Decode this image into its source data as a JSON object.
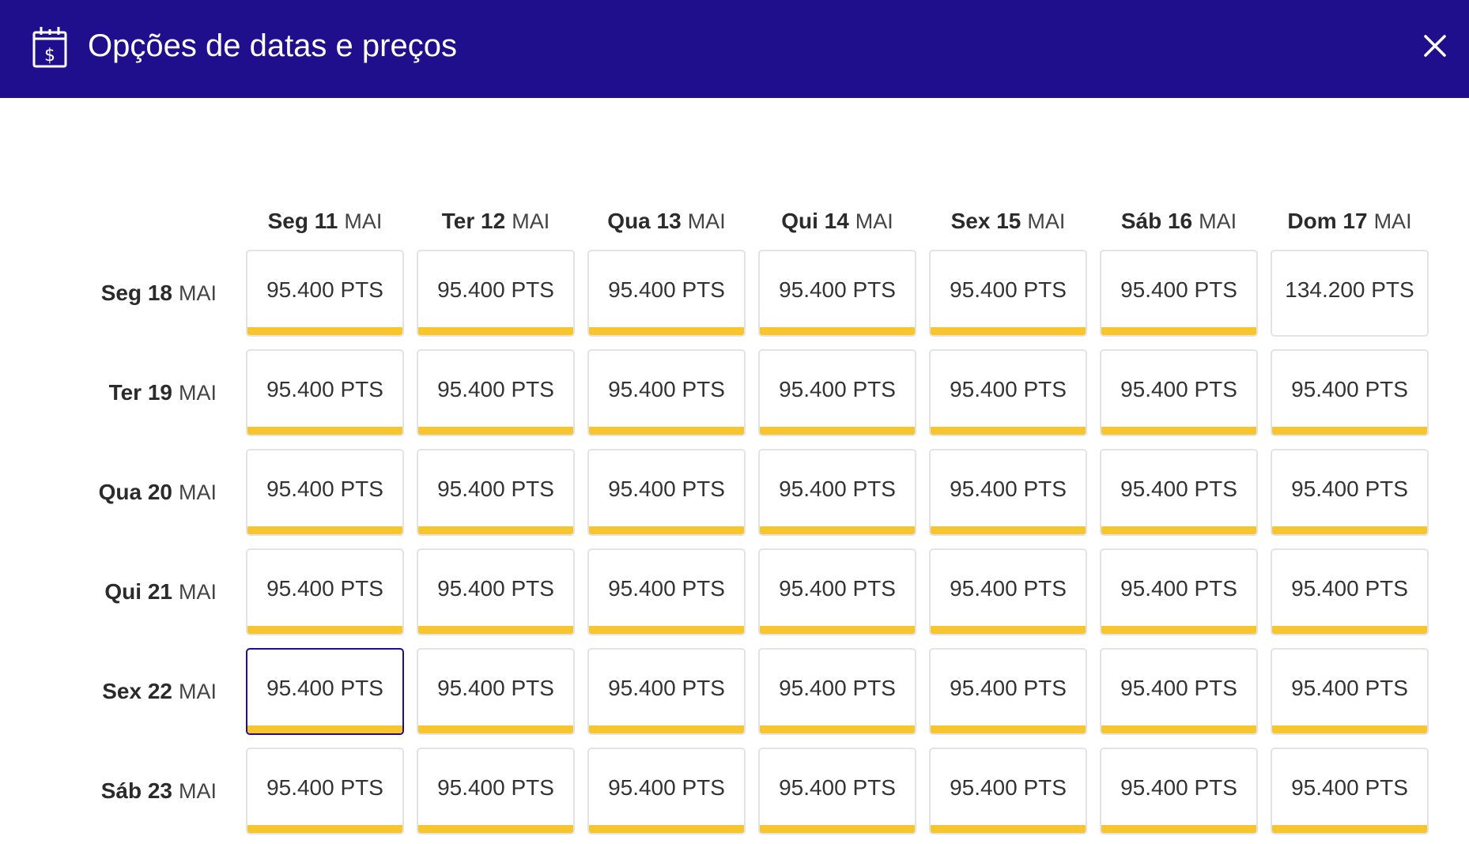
{
  "header": {
    "title": "Opções de datas e preços",
    "icon": "calendar-dollar-icon",
    "close_icon": "close-icon",
    "background_color": "#1f0f8c"
  },
  "columns": [
    {
      "day": "Seg 11",
      "month": "MAI"
    },
    {
      "day": "Ter 12",
      "month": "MAI"
    },
    {
      "day": "Qua 13",
      "month": "MAI"
    },
    {
      "day": "Qui 14",
      "month": "MAI"
    },
    {
      "day": "Sex 15",
      "month": "MAI"
    },
    {
      "day": "Sáb 16",
      "month": "MAI"
    },
    {
      "day": "Dom 17",
      "month": "MAI"
    }
  ],
  "rows": [
    {
      "day": "Seg 18",
      "month": "MAI",
      "cells": [
        {
          "price": "95.400 PTS",
          "highlighted": true
        },
        {
          "price": "95.400 PTS",
          "highlighted": true
        },
        {
          "price": "95.400 PTS",
          "highlighted": true
        },
        {
          "price": "95.400 PTS",
          "highlighted": true
        },
        {
          "price": "95.400 PTS",
          "highlighted": true
        },
        {
          "price": "95.400 PTS",
          "highlighted": true
        },
        {
          "price": "134.200 PTS",
          "highlighted": false
        }
      ]
    },
    {
      "day": "Ter 19",
      "month": "MAI",
      "cells": [
        {
          "price": "95.400 PTS",
          "highlighted": true
        },
        {
          "price": "95.400 PTS",
          "highlighted": true
        },
        {
          "price": "95.400 PTS",
          "highlighted": true
        },
        {
          "price": "95.400 PTS",
          "highlighted": true
        },
        {
          "price": "95.400 PTS",
          "highlighted": true
        },
        {
          "price": "95.400 PTS",
          "highlighted": true
        },
        {
          "price": "95.400 PTS",
          "highlighted": true
        }
      ]
    },
    {
      "day": "Qua 20",
      "month": "MAI",
      "cells": [
        {
          "price": "95.400 PTS",
          "highlighted": true
        },
        {
          "price": "95.400 PTS",
          "highlighted": true
        },
        {
          "price": "95.400 PTS",
          "highlighted": true
        },
        {
          "price": "95.400 PTS",
          "highlighted": true
        },
        {
          "price": "95.400 PTS",
          "highlighted": true
        },
        {
          "price": "95.400 PTS",
          "highlighted": true
        },
        {
          "price": "95.400 PTS",
          "highlighted": true
        }
      ]
    },
    {
      "day": "Qui 21",
      "month": "MAI",
      "cells": [
        {
          "price": "95.400 PTS",
          "highlighted": true
        },
        {
          "price": "95.400 PTS",
          "highlighted": true
        },
        {
          "price": "95.400 PTS",
          "highlighted": true
        },
        {
          "price": "95.400 PTS",
          "highlighted": true
        },
        {
          "price": "95.400 PTS",
          "highlighted": true
        },
        {
          "price": "95.400 PTS",
          "highlighted": true
        },
        {
          "price": "95.400 PTS",
          "highlighted": true
        }
      ]
    },
    {
      "day": "Sex 22",
      "month": "MAI",
      "cells": [
        {
          "price": "95.400 PTS",
          "highlighted": true,
          "selected": true
        },
        {
          "price": "95.400 PTS",
          "highlighted": true
        },
        {
          "price": "95.400 PTS",
          "highlighted": true
        },
        {
          "price": "95.400 PTS",
          "highlighted": true
        },
        {
          "price": "95.400 PTS",
          "highlighted": true
        },
        {
          "price": "95.400 PTS",
          "highlighted": true
        },
        {
          "price": "95.400 PTS",
          "highlighted": true
        }
      ]
    },
    {
      "day": "Sáb 23",
      "month": "MAI",
      "cells": [
        {
          "price": "95.400 PTS",
          "highlighted": true
        },
        {
          "price": "95.400 PTS",
          "highlighted": true
        },
        {
          "price": "95.400 PTS",
          "highlighted": true
        },
        {
          "price": "95.400 PTS",
          "highlighted": true
        },
        {
          "price": "95.400 PTS",
          "highlighted": true
        },
        {
          "price": "95.400 PTS",
          "highlighted": true
        },
        {
          "price": "95.400 PTS",
          "highlighted": true
        }
      ]
    }
  ],
  "colors": {
    "best_price_bar": "#f7c52e",
    "selected_border": "#1f0f8c",
    "cell_border": "#e3e3e3"
  }
}
